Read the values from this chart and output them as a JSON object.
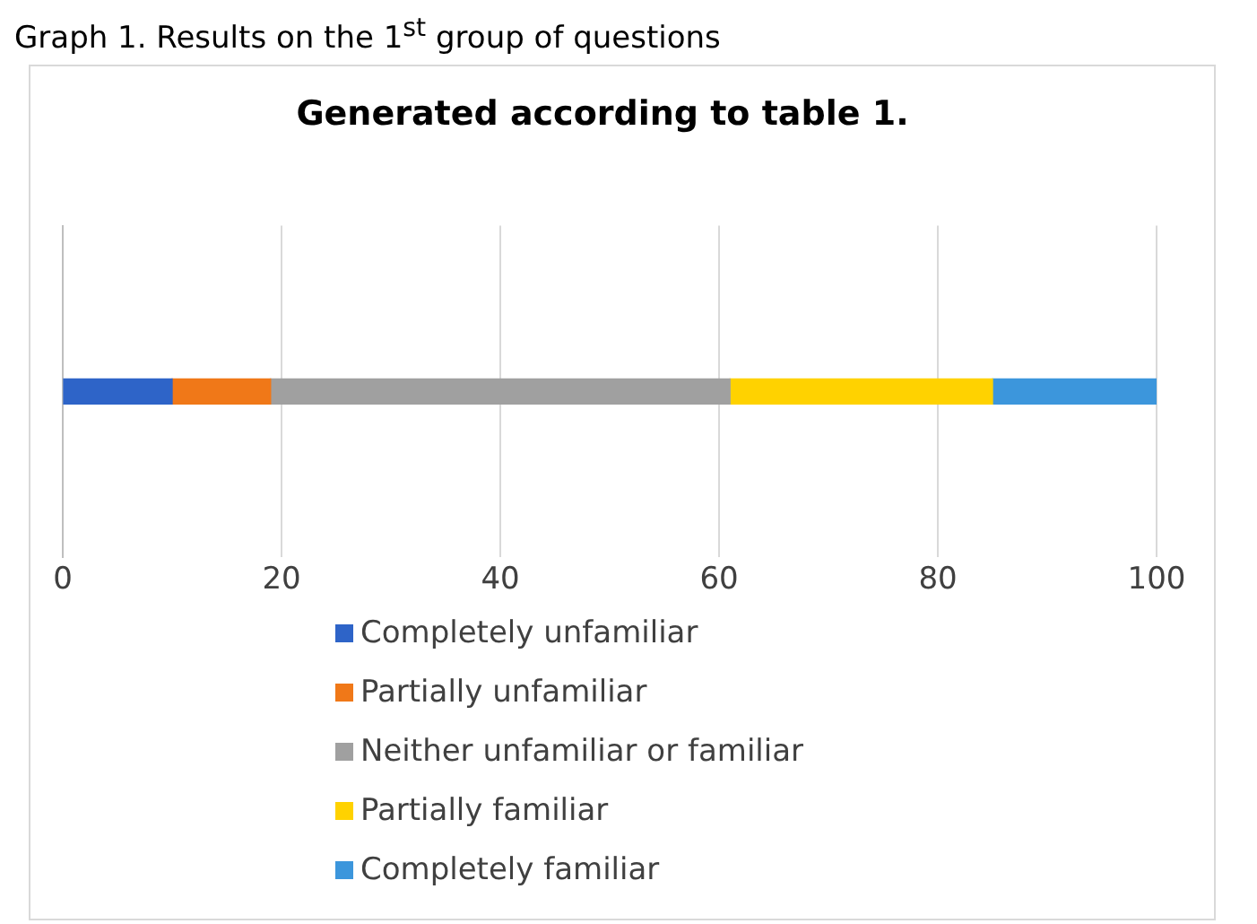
{
  "chart_data": {
    "type": "bar",
    "orientation": "horizontal",
    "stacked": true,
    "title": "Generated according to table 1.",
    "annotations": [
      "Graph 1. Results on the 1$^{st}$ group of questions"
    ],
    "categories": [
      null
    ],
    "series": [
      {
        "name": "Completely unfamiliar",
        "color": "#2e64c8",
        "values": [
          10
        ]
      },
      {
        "name": "Partially unfamiliar",
        "color": "#f07818",
        "values": [
          9
        ]
      },
      {
        "name": "Neither unfamiliar or familiar",
        "color": "#a0a0a0",
        "values": [
          42
        ]
      },
      {
        "name": "Partially familiar",
        "color": "#ffd200",
        "values": [
          24
        ]
      },
      {
        "name": "Completely familiar",
        "color": "#3c96dc",
        "values": [
          15
        ]
      }
    ],
    "xlim": [
      0,
      100
    ],
    "xticks": [
      0,
      20,
      40,
      60,
      80,
      100
    ],
    "grid": "x",
    "legend": "bottom"
  }
}
